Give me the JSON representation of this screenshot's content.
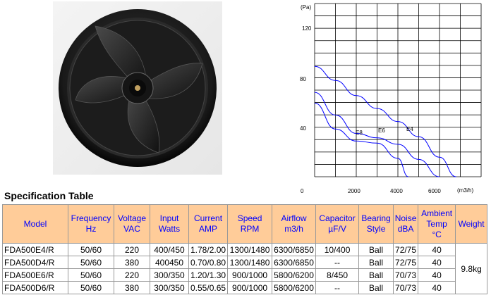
{
  "spec_title": "Specification Table",
  "chart": {
    "y_unit": "(Pa)",
    "x_unit": "(m3/h)",
    "y_ticks": [
      "120",
      "80",
      "40"
    ],
    "x_ticks": [
      "0",
      "2000",
      "4000",
      "6000"
    ],
    "curve_labels": [
      "E8",
      "E6",
      "E4"
    ]
  },
  "chart_data": {
    "type": "line",
    "title": "",
    "xlabel": "(m3/h)",
    "ylabel": "(Pa)",
    "xlim": [
      0,
      8000
    ],
    "ylim": [
      0,
      160
    ],
    "grid": true,
    "series": [
      {
        "name": "E4",
        "x": [
          0,
          1000,
          2000,
          3000,
          4000,
          5000,
          6000,
          6800
        ],
        "y": [
          102,
          89,
          75,
          63,
          51,
          37,
          18,
          0
        ]
      },
      {
        "name": "E6",
        "x": [
          0,
          1000,
          2000,
          3000,
          4000,
          5000,
          6000
        ],
        "y": [
          78,
          57,
          40,
          36,
          30,
          16,
          0
        ]
      },
      {
        "name": "E8",
        "x": [
          0,
          1000,
          2000,
          3000,
          4000,
          4500
        ],
        "y": [
          68,
          44,
          33,
          31,
          17,
          0
        ]
      }
    ]
  },
  "table": {
    "headers": [
      "Model",
      "Frequency Hz",
      "Voltage VAC",
      "Input Watts",
      "Current AMP",
      "Speed RPM",
      "Airflow m3/h",
      "Capacitor µF/V",
      "Bearing Style",
      "Noise dBA",
      "Ambient Temp °C",
      "Weight"
    ],
    "rows": [
      [
        "FDA500E4/R",
        "50/60",
        "220",
        "400/450",
        "1.78/2.00",
        "1300/1480",
        "6300/6850",
        "10/400",
        "Ball",
        "72/75",
        "40"
      ],
      [
        "FDA500D4/R",
        "50/60",
        "380",
        "400450",
        "0.70/0.80",
        "1300/1480",
        "6300/6850",
        "--",
        "Ball",
        "72/75",
        "40"
      ],
      [
        "FDA500E6/R",
        "50/60",
        "220",
        "300/350",
        "1.20/1.30",
        "900/1000",
        "5800/6200",
        "8/450",
        "Ball",
        "70/73",
        "40"
      ],
      [
        "FDA500D6/R",
        "50/60",
        "380",
        "300/350",
        "0.55/0.65",
        "900/1000",
        "5800/6200",
        "--",
        "Ball",
        "70/73",
        "40"
      ]
    ],
    "weight": "9.8kg"
  },
  "colors": {
    "header_bg": "#ffcc99",
    "header_text": "#0000ff",
    "curve": "#0000ff"
  }
}
